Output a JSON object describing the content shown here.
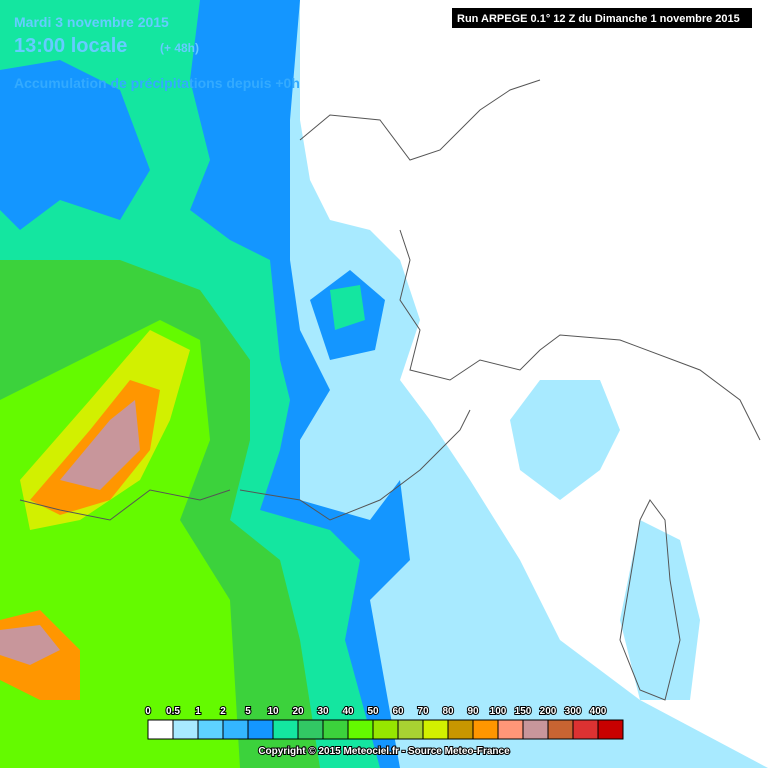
{
  "header": {
    "date": "Mardi 3 novembre 2015",
    "time": "13:00 locale",
    "offset": "(+ 48h)",
    "subtitle": "Accumulation de précipitations depuis +0h",
    "run": "Run ARPEGE 0.1° 12 Z du Dimanche 1 novembre 2015"
  },
  "legend": {
    "items": [
      {
        "label": "0",
        "color": "#ffffff"
      },
      {
        "label": "0.5",
        "color": "#a8eaff"
      },
      {
        "label": "1",
        "color": "#5ed2ff"
      },
      {
        "label": "2",
        "color": "#34b6ff"
      },
      {
        "label": "5",
        "color": "#1496ff"
      },
      {
        "label": "10",
        "color": "#14e6a0"
      },
      {
        "label": "20",
        "color": "#32c864"
      },
      {
        "label": "30",
        "color": "#3cd23c"
      },
      {
        "label": "40",
        "color": "#64fa00"
      },
      {
        "label": "50",
        "color": "#96e600"
      },
      {
        "label": "60",
        "color": "#a8d232"
      },
      {
        "label": "70",
        "color": "#d2f000"
      },
      {
        "label": "80",
        "color": "#c89600"
      },
      {
        "label": "90",
        "color": "#ff9600"
      },
      {
        "label": "100",
        "color": "#ff9678"
      },
      {
        "label": "150",
        "color": "#c8969b"
      },
      {
        "label": "200",
        "color": "#c86432"
      },
      {
        "label": "300",
        "color": "#dc3232"
      },
      {
        "label": "400",
        "color": "#c80000"
      }
    ]
  },
  "footer": {
    "copyright": "Copyright © 2015 Meteociel.fr - Source Meteo-France"
  }
}
